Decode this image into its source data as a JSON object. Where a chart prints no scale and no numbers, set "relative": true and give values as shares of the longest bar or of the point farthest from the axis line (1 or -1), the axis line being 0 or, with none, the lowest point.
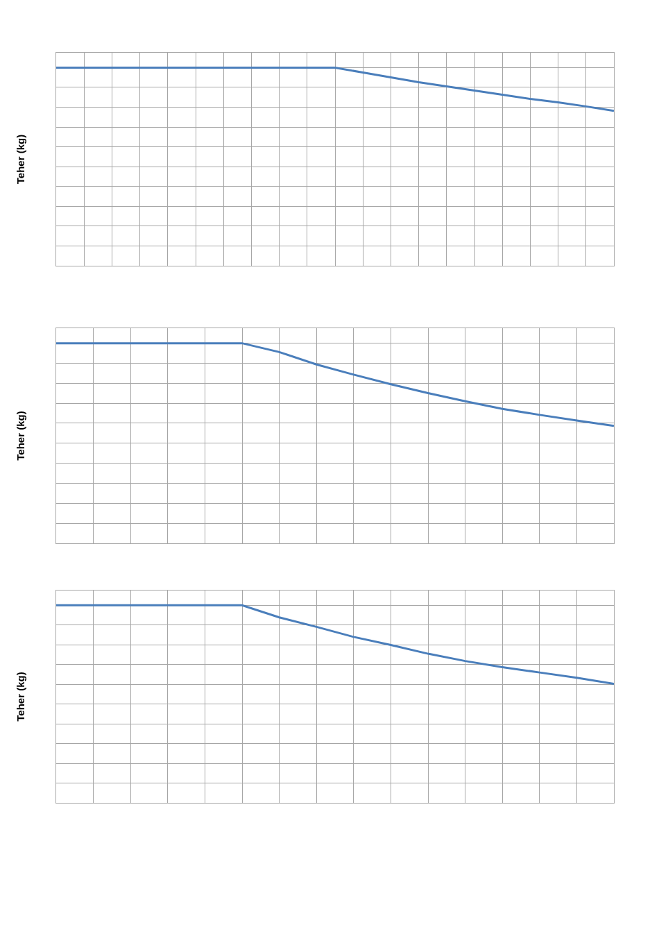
{
  "chart_data": [
    {
      "type": "line",
      "ylabel": "Teher (kg)",
      "relative": true,
      "grid": true,
      "marker": "none",
      "line_style": "solid",
      "categories": [
        null,
        null,
        null,
        null,
        null,
        null,
        null,
        null,
        null,
        null,
        null,
        null,
        null,
        null,
        null,
        null,
        null,
        null,
        null,
        null,
        null
      ],
      "series": [
        {
          "color": "#4a7ebb",
          "values": [
            1,
            1,
            1,
            1,
            1,
            1,
            1,
            1,
            1,
            1,
            1,
            0.975,
            0.951,
            0.926,
            0.905,
            0.884,
            0.863,
            0.842,
            0.825,
            0.804,
            0.782
          ]
        }
      ]
    },
    {
      "type": "line",
      "ylabel": "Teher (kg)",
      "relative": true,
      "grid": true,
      "marker": "none",
      "line_style": "solid",
      "categories": [
        null,
        null,
        null,
        null,
        null,
        null,
        null,
        null,
        null,
        null,
        null,
        null,
        null,
        null,
        null,
        null
      ],
      "series": [
        {
          "color": "#4a7ebb",
          "values": [
            1,
            1,
            1,
            1,
            1,
            1,
            0.956,
            0.894,
            0.843,
            0.795,
            0.751,
            0.71,
            0.672,
            0.642,
            0.614,
            0.587
          ]
        }
      ]
    },
    {
      "type": "line",
      "ylabel": "Teher (kg)",
      "relative": true,
      "grid": true,
      "marker": "none",
      "line_style": "solid",
      "categories": [
        null,
        null,
        null,
        null,
        null,
        null,
        null,
        null,
        null,
        null,
        null,
        null,
        null,
        null,
        null,
        null
      ],
      "series": [
        {
          "color": "#4a7ebb",
          "values": [
            1,
            1,
            1,
            1,
            1,
            1,
            0.939,
            0.891,
            0.84,
            0.799,
            0.755,
            0.718,
            0.687,
            0.66,
            0.633,
            0.602
          ]
        }
      ]
    }
  ]
}
